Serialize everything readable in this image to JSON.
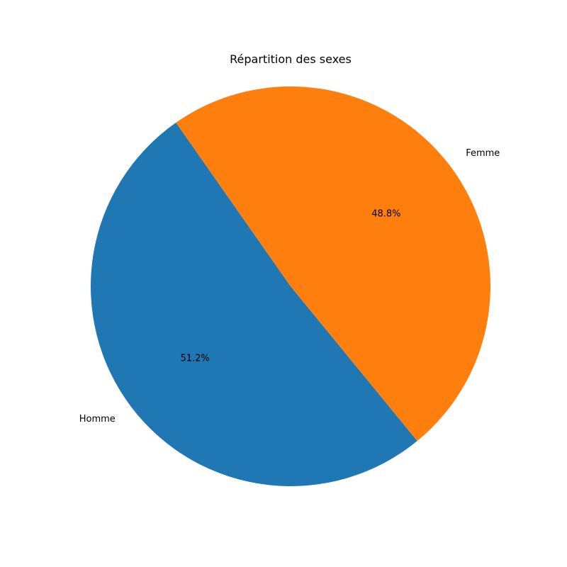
{
  "chart_data": {
    "type": "pie",
    "title": "Répartition des sexes",
    "slices": [
      {
        "label": "Homme",
        "value": 51.2,
        "pct_label": "51.2%",
        "color": "#1f77b4"
      },
      {
        "label": "Femme",
        "value": 48.8,
        "pct_label": "48.8%",
        "color": "#ff7f0e"
      }
    ]
  }
}
